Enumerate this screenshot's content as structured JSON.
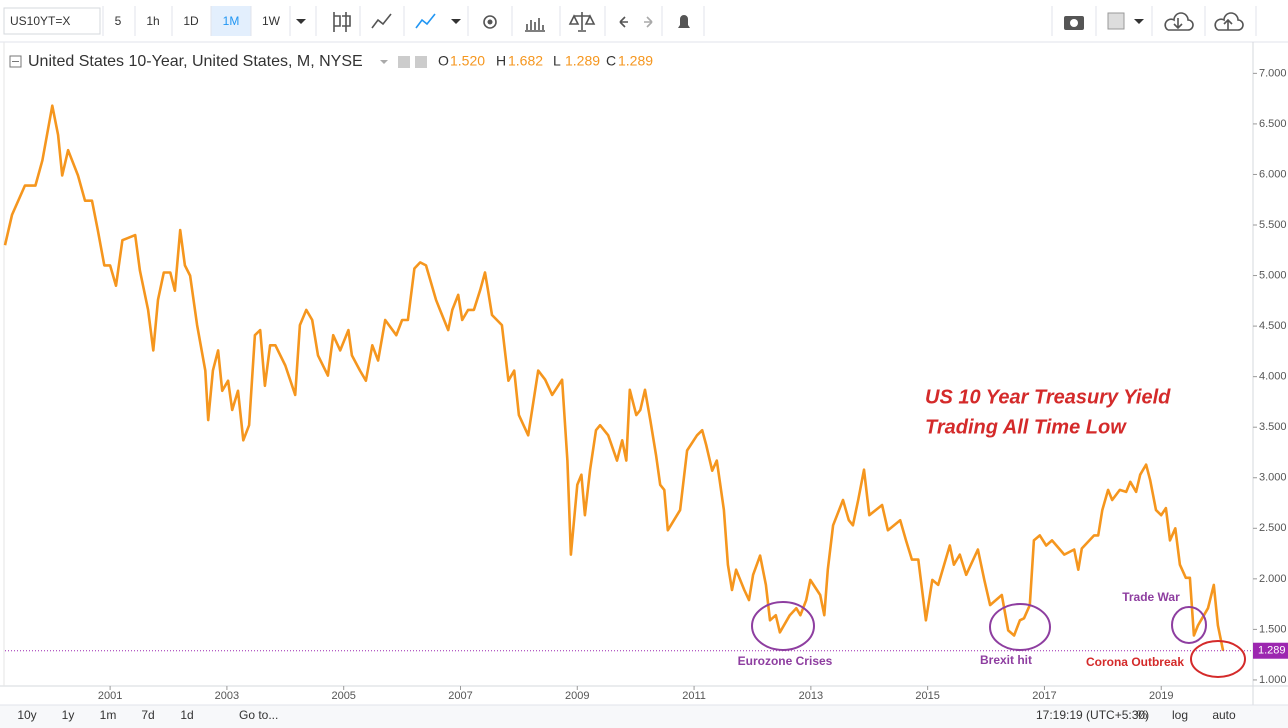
{
  "toolbar": {
    "symbol": "US10YT=X",
    "intervals": [
      "5",
      "1h",
      "1D",
      "1M",
      "1W"
    ]
  },
  "legend": {
    "title": "United States 10-Year, United States, M, NYSE",
    "ohlc": [
      {
        "label": "O",
        "value": "1.520"
      },
      {
        "label": "H",
        "value": "1.682"
      },
      {
        "label": "L",
        "value": "1.289"
      },
      {
        "label": "C",
        "value": "1.289"
      }
    ]
  },
  "chart_data": {
    "type": "line",
    "x": [
      1999.2,
      1999.32,
      1999.54,
      1999.72,
      1999.84,
      2000.01,
      2000.11,
      2000.18,
      2000.28,
      2000.45,
      2000.57,
      2000.69,
      2000.79,
      2000.9,
      2001.0,
      2001.1,
      2001.21,
      2001.43,
      2001.51,
      2001.65,
      2001.74,
      2001.82,
      2001.92,
      2002.03,
      2002.11,
      2002.2,
      2002.28,
      2002.37,
      2002.49,
      2002.63,
      2002.68,
      2002.76,
      2002.85,
      2002.92,
      2003.02,
      2003.09,
      2003.19,
      2003.28,
      2003.38,
      2003.48,
      2003.57,
      2003.65,
      2003.74,
      2003.83,
      2004.0,
      2004.17,
      2004.25,
      2004.36,
      2004.46,
      2004.56,
      2004.73,
      2004.82,
      2004.94,
      2005.08,
      2005.14,
      2005.28,
      2005.38,
      2005.49,
      2005.59,
      2005.71,
      2005.9,
      2006.0,
      2006.1,
      2006.21,
      2006.31,
      2006.41,
      2006.58,
      2006.65,
      2006.79,
      2006.86,
      2006.96,
      2007.03,
      2007.13,
      2007.23,
      2007.34,
      2007.42,
      2007.47,
      2007.54,
      2007.71,
      2007.82,
      2007.92,
      2008.0,
      2008.16,
      2008.33,
      2008.45,
      2008.57,
      2008.74,
      2008.83,
      2008.89,
      2009.0,
      2009.07,
      2009.13,
      2009.22,
      2009.32,
      2009.39,
      2009.53,
      2009.68,
      2009.77,
      2009.84,
      2009.9,
      2010.01,
      2010.08,
      2010.16,
      2010.25,
      2010.35,
      2010.42,
      2010.49,
      2010.55,
      2010.76,
      2010.88,
      2011.05,
      2011.14,
      2011.21,
      2011.31,
      2011.39,
      2011.45,
      2011.51,
      2011.58,
      2011.65,
      2011.72,
      2011.86,
      2011.94,
      2012.01,
      2012.13,
      2012.23,
      2012.3,
      2012.4,
      2012.47,
      2012.64,
      2012.75,
      2012.82,
      2012.92,
      2012.99,
      2013.16,
      2013.23,
      2013.29,
      2013.38,
      2013.55,
      2013.65,
      2013.72,
      2013.81,
      2013.91,
      2014.0,
      2014.22,
      2014.32,
      2014.53,
      2014.63,
      2014.73,
      2014.84,
      2014.97,
      2015.08,
      2015.18,
      2015.38,
      2015.45,
      2015.55,
      2015.66,
      2015.86,
      2015.97,
      2016.07,
      2016.27,
      2016.38,
      2016.48,
      2016.58,
      2016.65,
      2016.75,
      2016.82,
      2016.92,
      2017.03,
      2017.13,
      2017.34,
      2017.51,
      2017.58,
      2017.64,
      2017.85,
      2017.92,
      2017.99,
      2018.09,
      2018.16,
      2018.29,
      2018.4,
      2018.47,
      2018.57,
      2018.64,
      2018.74,
      2018.81,
      2018.91,
      2019.0,
      2019.08,
      2019.15,
      2019.24,
      2019.32,
      2019.42,
      2019.49,
      2019.56,
      2019.63,
      2019.8,
      2019.9,
      2019.97,
      2020.06
    ],
    "series": [
      {
        "color": "#f5961e",
        "values": [
          5.3,
          5.6,
          5.89,
          5.89,
          6.14,
          6.68,
          6.39,
          5.99,
          6.24,
          5.99,
          5.74,
          5.74,
          5.45,
          5.1,
          5.1,
          4.9,
          5.35,
          5.4,
          5.05,
          4.66,
          4.26,
          4.76,
          5.03,
          5.03,
          4.85,
          5.45,
          5.1,
          5.0,
          4.51,
          4.06,
          3.57,
          4.06,
          4.26,
          3.86,
          3.96,
          3.67,
          3.86,
          3.37,
          3.52,
          4.41,
          4.46,
          3.91,
          4.31,
          4.31,
          4.11,
          3.82,
          4.51,
          4.66,
          4.56,
          4.21,
          4.01,
          4.41,
          4.26,
          4.46,
          4.21,
          4.06,
          3.96,
          4.31,
          4.16,
          4.56,
          4.41,
          4.56,
          4.56,
          5.07,
          5.13,
          5.1,
          4.76,
          4.66,
          4.46,
          4.66,
          4.81,
          4.56,
          4.66,
          4.66,
          4.86,
          5.03,
          4.86,
          4.61,
          4.51,
          3.96,
          4.06,
          3.62,
          3.42,
          4.06,
          3.97,
          3.82,
          3.97,
          3.17,
          2.24,
          2.93,
          3.03,
          2.63,
          3.08,
          3.47,
          3.52,
          3.42,
          3.17,
          3.37,
          3.17,
          3.87,
          3.62,
          3.67,
          3.87,
          3.57,
          3.22,
          2.93,
          2.88,
          2.48,
          2.68,
          3.27,
          3.42,
          3.47,
          3.32,
          3.07,
          3.17,
          2.93,
          2.68,
          2.14,
          1.89,
          2.09,
          1.89,
          1.79,
          2.04,
          2.23,
          1.94,
          1.59,
          1.64,
          1.47,
          1.64,
          1.71,
          1.64,
          1.79,
          1.99,
          1.84,
          1.64,
          2.09,
          2.53,
          2.78,
          2.58,
          2.53,
          2.78,
          3.08,
          2.63,
          2.73,
          2.48,
          2.58,
          2.38,
          2.19,
          2.19,
          1.59,
          1.99,
          1.94,
          2.33,
          2.14,
          2.24,
          2.04,
          2.29,
          1.99,
          1.74,
          1.84,
          1.49,
          1.44,
          1.59,
          1.61,
          1.74,
          2.38,
          2.43,
          2.33,
          2.38,
          2.24,
          2.29,
          2.09,
          2.3,
          2.43,
          2.43,
          2.68,
          2.88,
          2.78,
          2.88,
          2.86,
          2.96,
          2.86,
          3.03,
          3.13,
          2.98,
          2.68,
          2.63,
          2.7,
          2.38,
          2.5,
          2.14,
          2.01,
          2.01,
          1.44,
          1.54,
          1.71,
          1.94,
          1.54,
          1.289
        ]
      }
    ],
    "xlim": [
      1999.2,
      2020.52
    ],
    "xticks": [
      2001,
      2003,
      2005,
      2007,
      2009,
      2011,
      2013,
      2015,
      2017,
      2019
    ],
    "ylim": [
      0.95,
      7.33
    ],
    "yticks": [
      {
        "value": 1,
        "label": "1.000"
      },
      {
        "value": 1.5,
        "label": "1.500"
      },
      {
        "value": 2,
        "label": "2.000"
      },
      {
        "value": 2.5,
        "label": "2.500"
      },
      {
        "value": 3,
        "label": "3.000"
      },
      {
        "value": 3.5,
        "label": "3.500"
      },
      {
        "value": 4,
        "label": "4.000"
      },
      {
        "value": 4.5,
        "label": "4.500"
      },
      {
        "value": 5,
        "label": "5.000"
      },
      {
        "value": 5.5,
        "label": "5.500"
      },
      {
        "value": 6,
        "label": "6.000"
      },
      {
        "value": 6.5,
        "label": "6.500"
      },
      {
        "value": 7,
        "label": "7.000"
      }
    ],
    "grid": false,
    "price_line": {
      "value": 1.289,
      "label": "1.289",
      "color": "#9c27b0"
    },
    "annotations": {
      "headline": [
        "US 10 Year Treasury Yield",
        "Trading All Time Low"
      ],
      "headline_color": "#d42a2a",
      "events": [
        {
          "label": "Eurozone Crises",
          "color": "#8e3ea0"
        },
        {
          "label": "Brexit hit",
          "color": "#8e3ea0"
        },
        {
          "label": "Trade War",
          "color": "#8e3ea0"
        },
        {
          "label": "Corona Outbreak",
          "color": "#d42a2a"
        }
      ]
    }
  },
  "bottom_bar": {
    "ranges": [
      "10y",
      "1y",
      "1m",
      "7d",
      "1d"
    ],
    "goto": "Go to...",
    "time": "17:19:19 (UTC+5:30)",
    "options": [
      "%",
      "log",
      "auto"
    ]
  }
}
